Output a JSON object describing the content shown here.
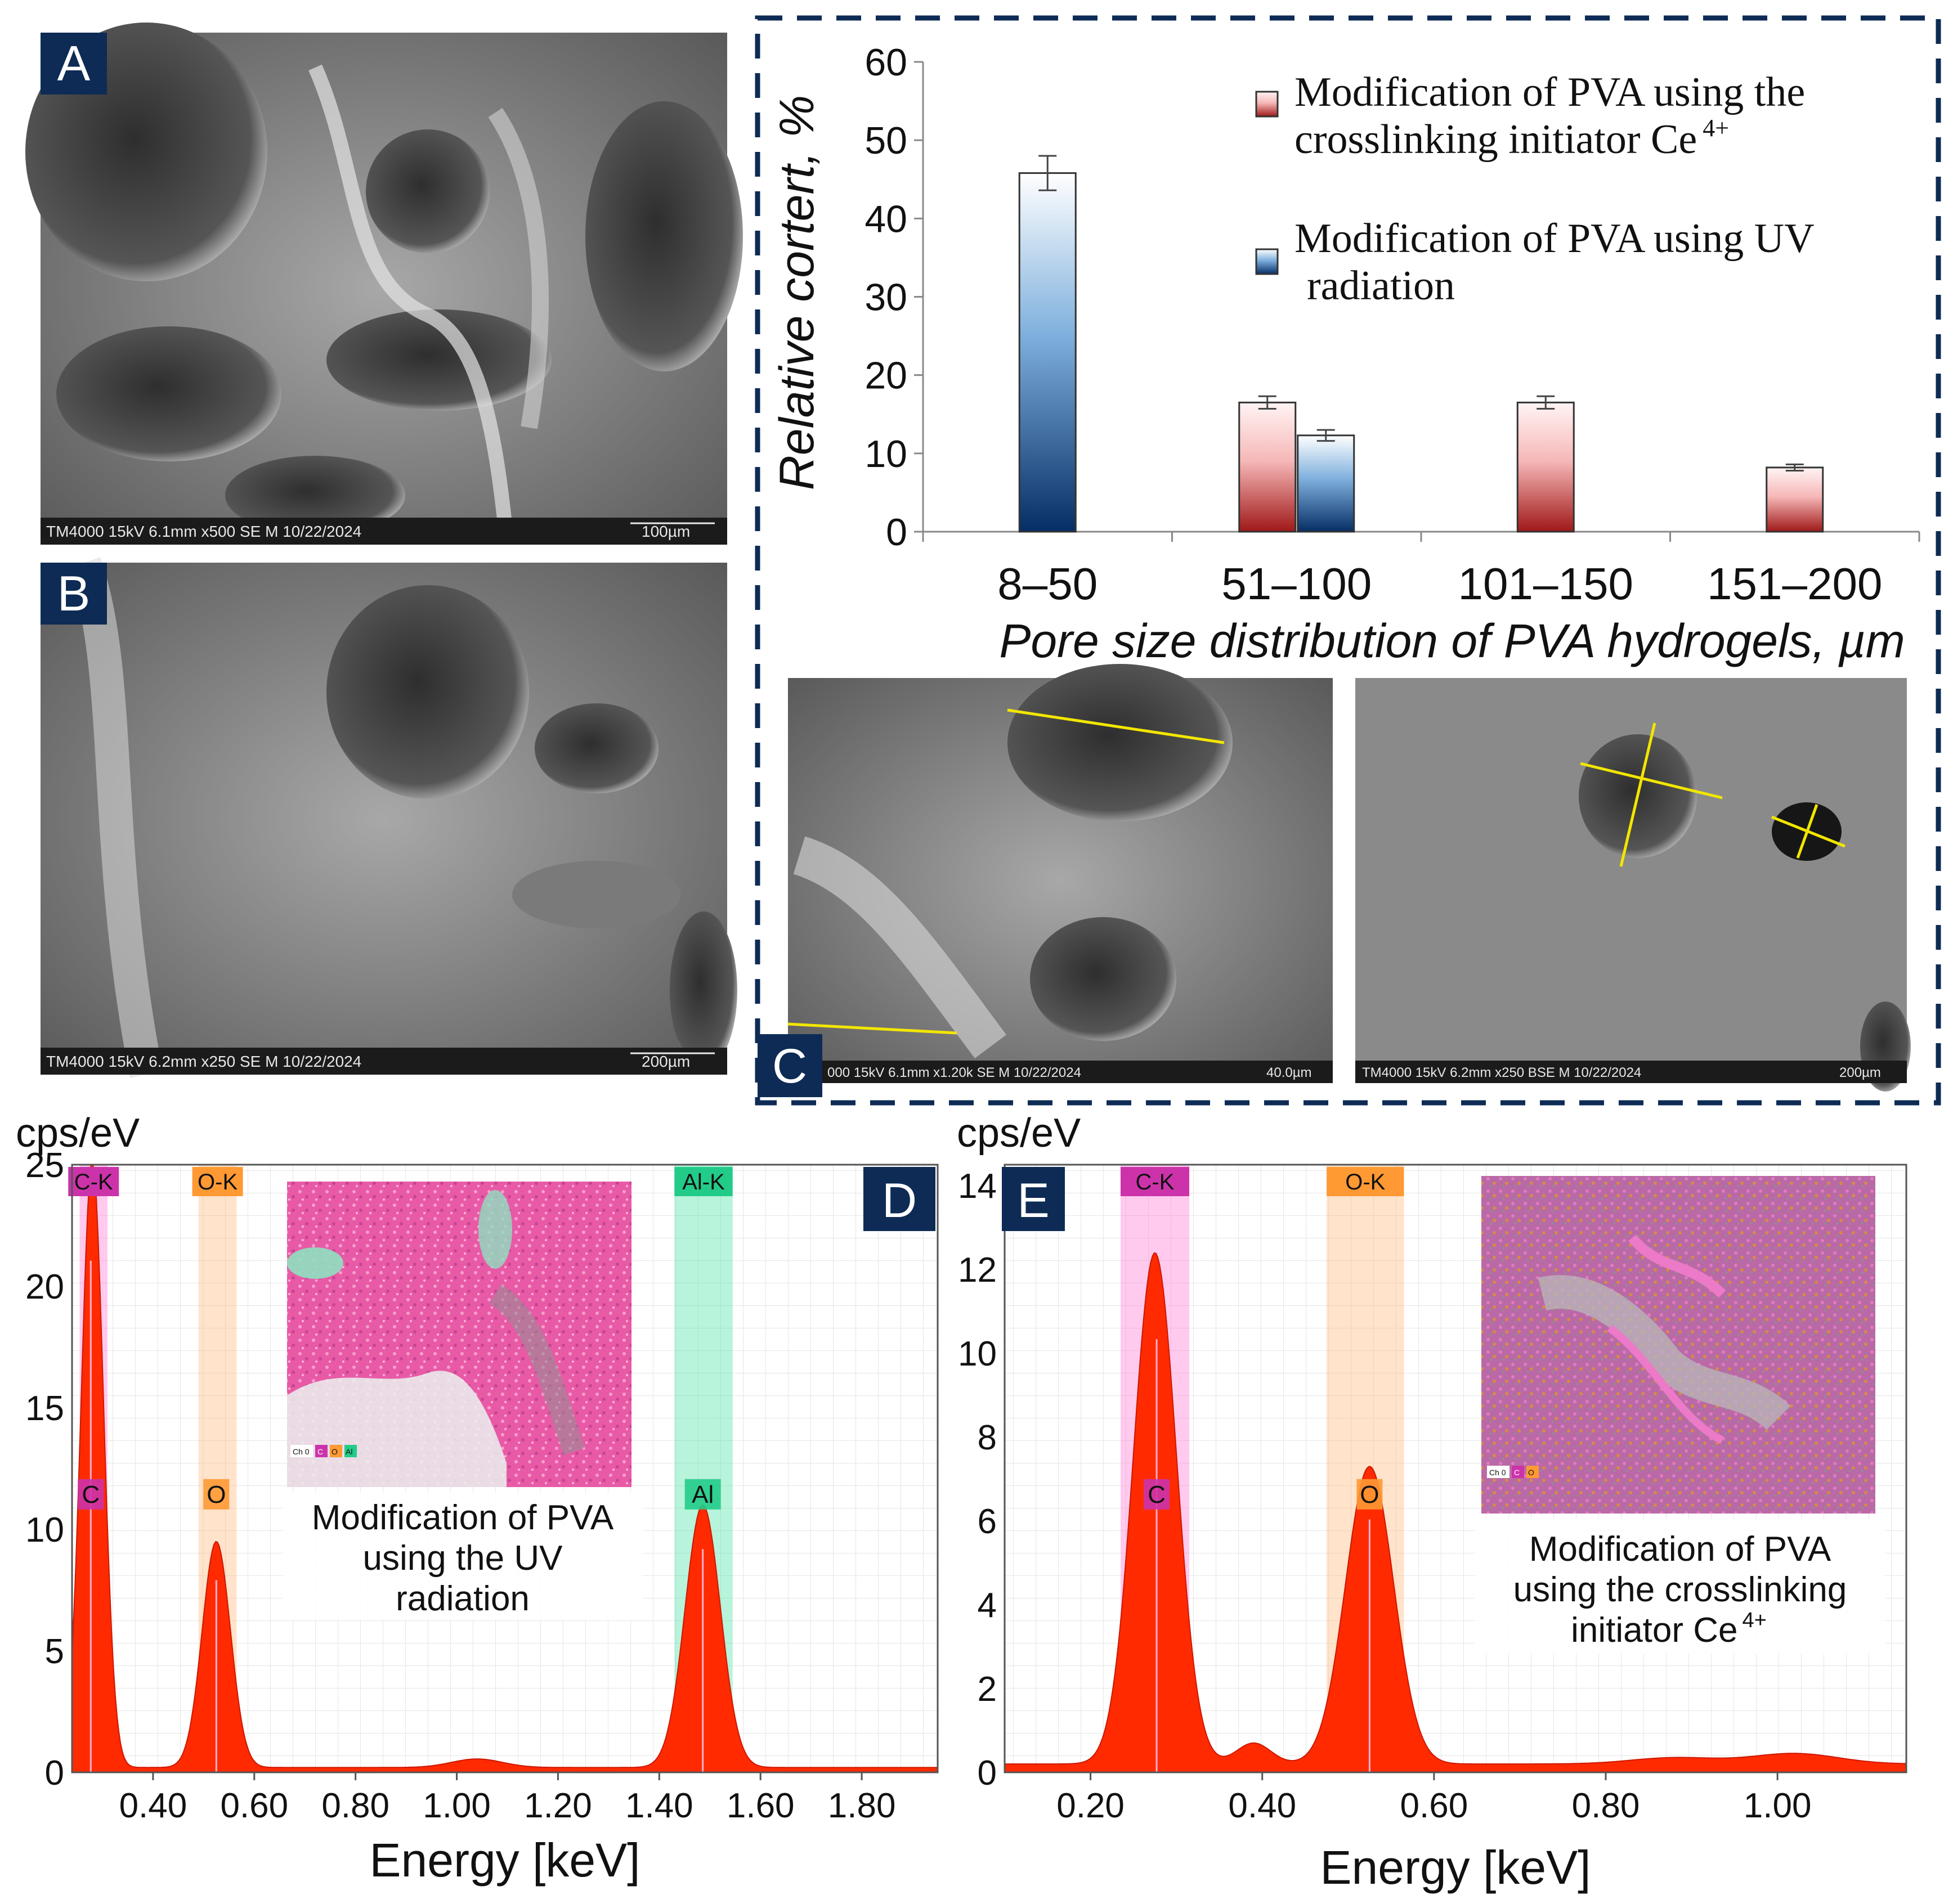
{
  "panel_labels": {
    "a": "A",
    "b": "B",
    "c": "C",
    "d": "D",
    "e": "E"
  },
  "sem": {
    "a_caption": "TM4000 15kV 6.1mm x500 SE M 10/22/2024",
    "a_scale": "100µm",
    "b_caption": "TM4000 15kV 6.2mm x250 SE M 10/22/2024",
    "b_scale": "200µm",
    "c1_caption": "000 15kV 6.1mm x1.20k SE M 10/22/2024",
    "c1_scale": "40.0µm",
    "c2_caption": "TM4000 15kV 6.2mm x250 BSE M 10/22/2024",
    "c2_scale": "200µm"
  },
  "colors": {
    "navy": "#0d2b55",
    "red_peak": "#ff2200",
    "c_band": "#ff66cc",
    "o_band": "#ffb066",
    "al_band": "#33dd99",
    "c_tag": "#cc33aa",
    "o_tag": "#ff9933",
    "al_tag": "#22cc88"
  },
  "chart_data": [
    {
      "type": "bar",
      "ylabel": "Relative cortert, %",
      "xlabel": "Pore size distribution of PVA hydrogels, µm",
      "categories": [
        "8–50",
        "51–100",
        "101–150",
        "151–200"
      ],
      "ylim": [
        0,
        60
      ],
      "yticks": [
        "0",
        "10",
        "20",
        "30",
        "40",
        "50",
        "60"
      ],
      "legend_position": "top-right",
      "series": [
        {
          "name_line1": "Modification of PVA using the",
          "name_line2": "crosslinking initiator Ce",
          "name_sup": "4+",
          "color": "#b02020",
          "values": [
            null,
            16.5,
            16.5,
            8.2
          ],
          "errors": [
            null,
            0.8,
            0.8,
            0.4
          ]
        },
        {
          "name_line1": "Modification of PVA using UV",
          "name_line2": "radiation",
          "name_sup": "",
          "color": "#0a3a7a",
          "values": [
            45.8,
            12.3,
            null,
            null
          ],
          "errors": [
            2.2,
            0.7,
            null,
            null
          ]
        }
      ]
    },
    {
      "type": "area",
      "ylabel": "cps/eV",
      "xlabel": "Energy [keV]",
      "xlim": [
        0.24,
        1.95
      ],
      "ylim": [
        0,
        25
      ],
      "xticks": [
        "0.40",
        "0.60",
        "0.80",
        "1.00",
        "1.20",
        "1.40",
        "1.60",
        "1.80"
      ],
      "yticks": [
        "0",
        "5",
        "10",
        "15",
        "20",
        "25"
      ],
      "elements": [
        {
          "line": "C-K",
          "symbol": "C",
          "energy": 0.277,
          "band": [
            0.255,
            0.31
          ]
        },
        {
          "line": "O-K",
          "symbol": "O",
          "energy": 0.525,
          "band": [
            0.49,
            0.565
          ]
        },
        {
          "line": "Al-K",
          "symbol": "Al",
          "energy": 1.486,
          "band": [
            1.43,
            1.545
          ]
        }
      ],
      "peaks": [
        {
          "center": 0.28,
          "height": 25.0,
          "width": 0.022
        },
        {
          "center": 0.525,
          "height": 9.3,
          "width": 0.028
        },
        {
          "center": 1.486,
          "height": 10.8,
          "width": 0.035
        },
        {
          "center": 1.04,
          "height": 0.35,
          "width": 0.05
        }
      ],
      "inset_caption": [
        "Modification of PVA",
        "using the UV",
        "radiation"
      ],
      "inset_legend": [
        "Ch 0",
        "C",
        "O",
        "Al"
      ]
    },
    {
      "type": "area",
      "ylabel": "cps/eV",
      "xlabel": "Energy [keV]",
      "xlim": [
        0.1,
        1.15
      ],
      "ylim": [
        0,
        14.5
      ],
      "xticks": [
        "0.20",
        "0.40",
        "0.60",
        "0.80",
        "1.00"
      ],
      "yticks": [
        "0",
        "2",
        "4",
        "6",
        "8",
        "10",
        "12",
        "14"
      ],
      "elements": [
        {
          "line": "C-K",
          "symbol": "C",
          "energy": 0.277,
          "band": [
            0.235,
            0.315
          ]
        },
        {
          "line": "O-K",
          "symbol": "O",
          "energy": 0.525,
          "band": [
            0.475,
            0.565
          ]
        }
      ],
      "peaks": [
        {
          "center": 0.275,
          "height": 12.2,
          "width": 0.025
        },
        {
          "center": 0.525,
          "height": 7.1,
          "width": 0.028
        },
        {
          "center": 0.39,
          "height": 0.5,
          "width": 0.02
        },
        {
          "center": 1.02,
          "height": 0.25,
          "width": 0.05
        },
        {
          "center": 0.88,
          "height": 0.15,
          "width": 0.05
        }
      ],
      "inset_caption": [
        "Modification of PVA",
        "using the crosslinking",
        "initiator Ce"
      ],
      "inset_caption_sup": "4+",
      "inset_legend": [
        "Ch 0",
        "C",
        "O"
      ]
    }
  ]
}
